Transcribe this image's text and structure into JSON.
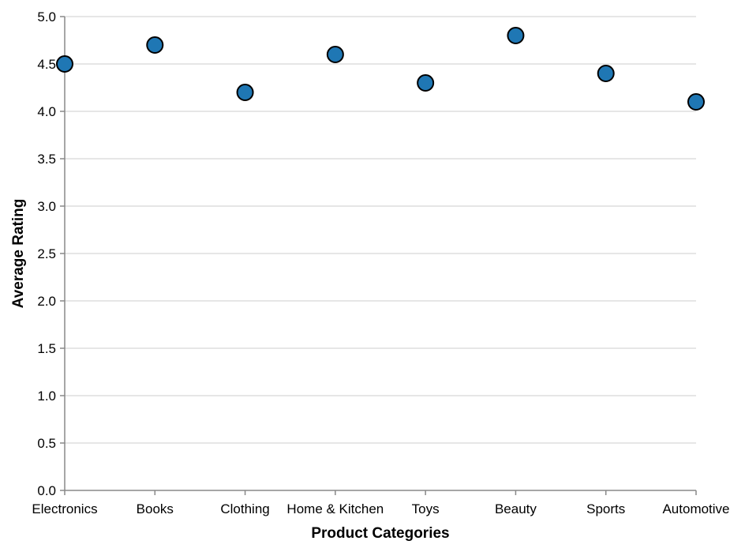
{
  "chart_data": {
    "type": "scatter",
    "title": "",
    "xlabel": "Product Categories",
    "ylabel": "Average Rating",
    "categories": [
      "Electronics",
      "Books",
      "Clothing",
      "Home & Kitchen",
      "Toys",
      "Beauty",
      "Sports",
      "Automotive"
    ],
    "values": [
      4.5,
      4.7,
      4.2,
      4.6,
      4.3,
      4.8,
      4.4,
      4.1
    ],
    "ylim": [
      0,
      5
    ],
    "yticks": [
      "0.0",
      "0.5",
      "1.0",
      "1.5",
      "2.0",
      "2.5",
      "3.0",
      "3.5",
      "4.0",
      "4.5",
      "5.0"
    ],
    "grid": "horizontal",
    "legend": "none",
    "point_color": "#1f77b4"
  }
}
